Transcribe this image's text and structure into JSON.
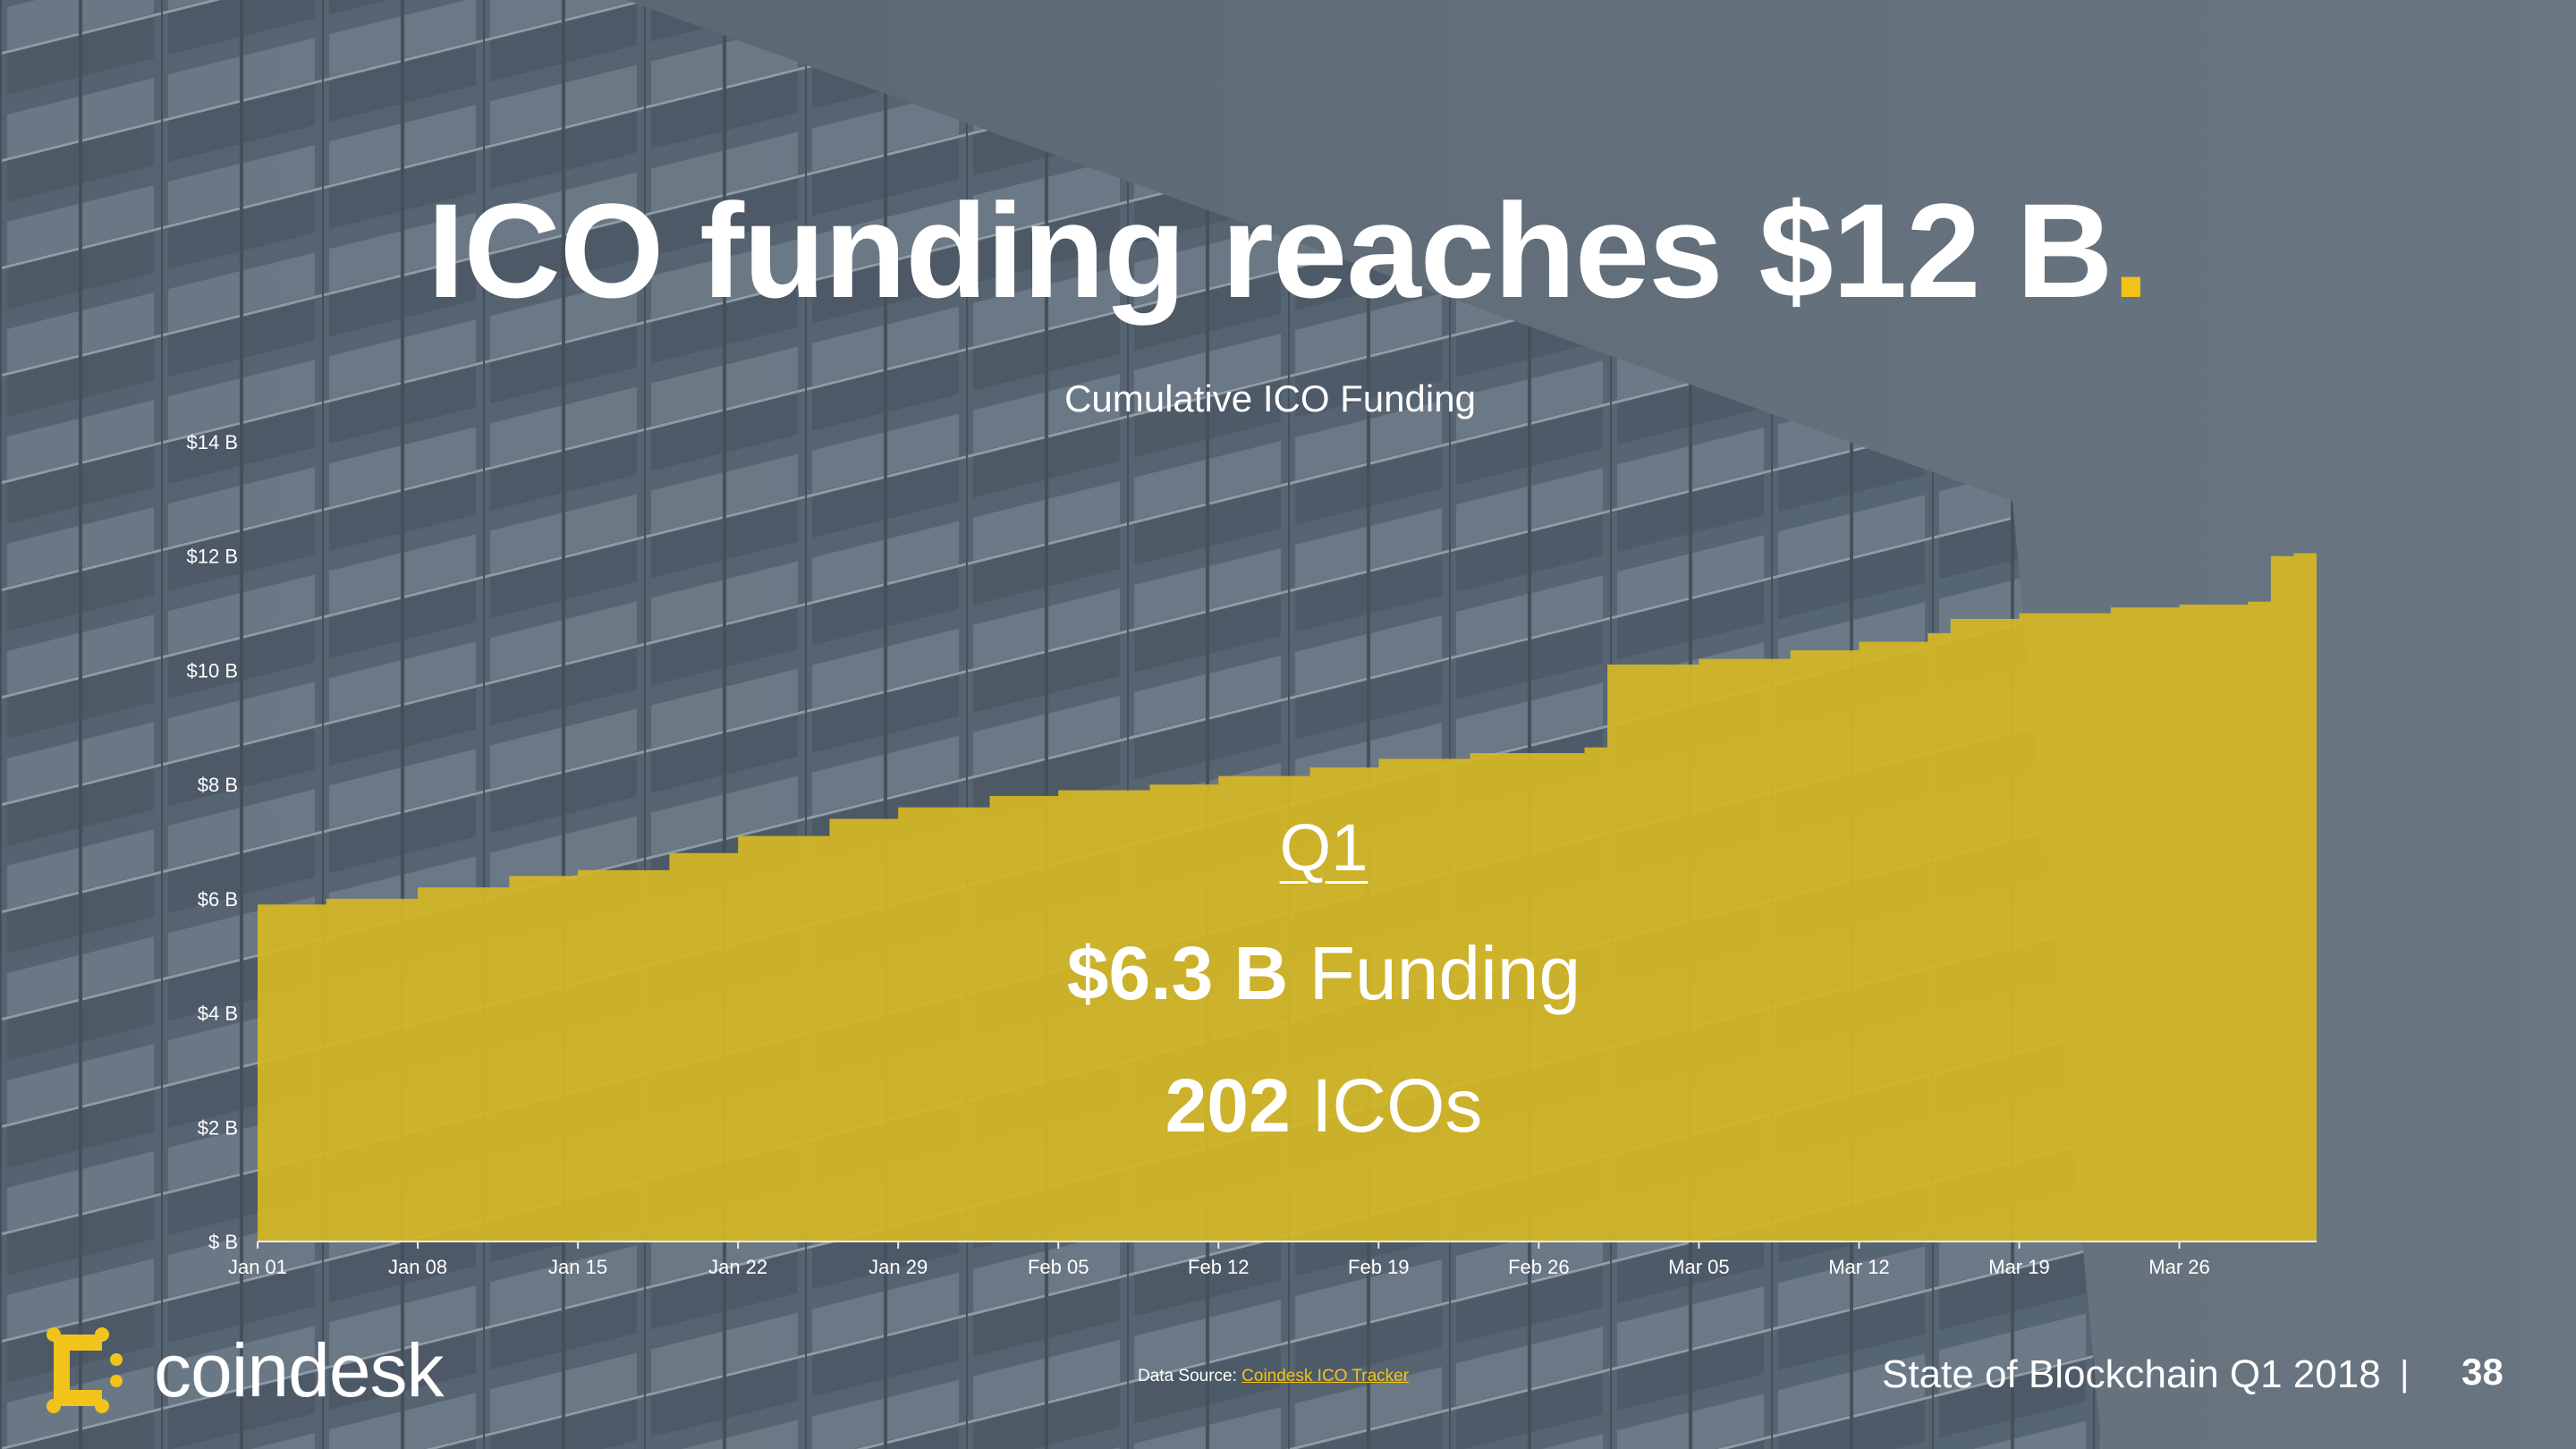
{
  "slide": {
    "title": "ICO funding reaches $12 B",
    "title_dot": ".",
    "page_number": "38",
    "footer_title": "State of Blockchain Q1 2018",
    "footer_separator": "|",
    "brand": "coindesk",
    "source_prefix": "Data Source: ",
    "source_link": "Coindesk ICO Tracker"
  },
  "callout": {
    "label": "Q1",
    "funding_value": "$6.3 B",
    "funding_text": " Funding",
    "icos_value": "202",
    "icos_text": " ICOs"
  },
  "colors": {
    "accent": "#f2c31b",
    "area_fill": "#d6b724",
    "text": "#ffffff",
    "background": "#6a7783"
  },
  "chart_data": {
    "type": "area",
    "title": "Cumulative ICO Funding",
    "xlabel": "",
    "ylabel": "",
    "grid": false,
    "ylim": [
      0,
      14
    ],
    "y_ticks": [
      {
        "value": 0,
        "label": "$ B"
      },
      {
        "value": 2,
        "label": "$2 B"
      },
      {
        "value": 4,
        "label": "$4 B"
      },
      {
        "value": 6,
        "label": "$6 B"
      },
      {
        "value": 8,
        "label": "$8 B"
      },
      {
        "value": 10,
        "label": "$10 B"
      },
      {
        "value": 12,
        "label": "$12 B"
      },
      {
        "value": 14,
        "label": "$14 B"
      }
    ],
    "x_ticks": [
      {
        "date": "2018-01-01",
        "label": "Jan 01"
      },
      {
        "date": "2018-01-08",
        "label": "Jan 08"
      },
      {
        "date": "2018-01-15",
        "label": "Jan 15"
      },
      {
        "date": "2018-01-22",
        "label": "Jan 22"
      },
      {
        "date": "2018-01-29",
        "label": "Jan 29"
      },
      {
        "date": "2018-02-05",
        "label": "Feb 05"
      },
      {
        "date": "2018-02-12",
        "label": "Feb 12"
      },
      {
        "date": "2018-02-19",
        "label": "Feb 19"
      },
      {
        "date": "2018-02-26",
        "label": "Feb 26"
      },
      {
        "date": "2018-03-05",
        "label": "Mar 05"
      },
      {
        "date": "2018-03-12",
        "label": "Mar 12"
      },
      {
        "date": "2018-03-19",
        "label": "Mar 19"
      },
      {
        "date": "2018-03-26",
        "label": "Mar 26"
      }
    ],
    "series": [
      {
        "points": [
          {
            "x": "2018-01-01",
            "y": 5.9
          },
          {
            "x": "2018-01-04",
            "y": 6.0
          },
          {
            "x": "2018-01-08",
            "y": 6.2
          },
          {
            "x": "2018-01-12",
            "y": 6.4
          },
          {
            "x": "2018-01-15",
            "y": 6.5
          },
          {
            "x": "2018-01-19",
            "y": 6.8
          },
          {
            "x": "2018-01-22",
            "y": 7.1
          },
          {
            "x": "2018-01-26",
            "y": 7.4
          },
          {
            "x": "2018-01-29",
            "y": 7.6
          },
          {
            "x": "2018-02-02",
            "y": 7.8
          },
          {
            "x": "2018-02-05",
            "y": 7.9
          },
          {
            "x": "2018-02-09",
            "y": 8.0
          },
          {
            "x": "2018-02-12",
            "y": 8.15
          },
          {
            "x": "2018-02-16",
            "y": 8.3
          },
          {
            "x": "2018-02-19",
            "y": 8.45
          },
          {
            "x": "2018-02-23",
            "y": 8.55
          },
          {
            "x": "2018-02-28",
            "y": 8.65
          },
          {
            "x": "2018-03-01",
            "y": 10.1
          },
          {
            "x": "2018-03-05",
            "y": 10.2
          },
          {
            "x": "2018-03-09",
            "y": 10.35
          },
          {
            "x": "2018-03-12",
            "y": 10.5
          },
          {
            "x": "2018-03-15",
            "y": 10.65
          },
          {
            "x": "2018-03-16",
            "y": 10.9
          },
          {
            "x": "2018-03-19",
            "y": 11.0
          },
          {
            "x": "2018-03-23",
            "y": 11.1
          },
          {
            "x": "2018-03-26",
            "y": 11.15
          },
          {
            "x": "2018-03-29",
            "y": 11.2
          },
          {
            "x": "2018-03-30",
            "y": 12.0
          },
          {
            "x": "2018-03-31",
            "y": 12.05
          }
        ]
      }
    ]
  }
}
